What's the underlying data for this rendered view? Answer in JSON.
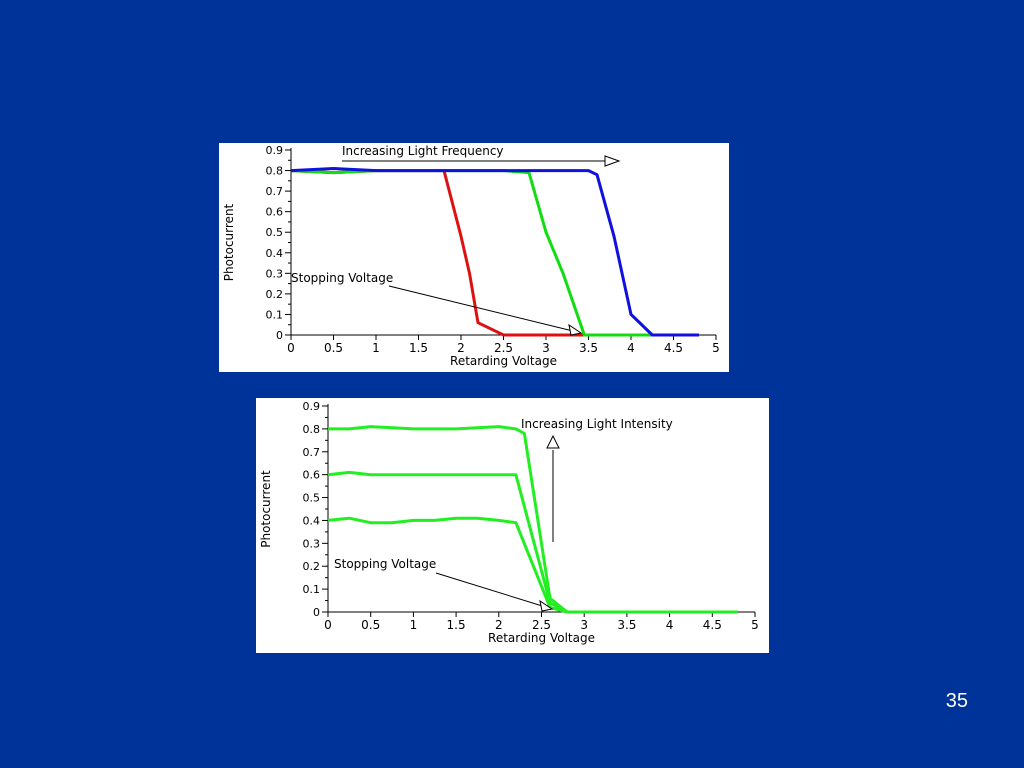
{
  "slide": {
    "page_number": "35",
    "background_color": "#003399"
  },
  "chart_data": [
    {
      "type": "line",
      "title": "",
      "xlabel": "Retarding Voltage",
      "ylabel": "Photocurrent",
      "xlim": [
        0,
        5
      ],
      "ylim": [
        0,
        0.9
      ],
      "xticks": [
        "0",
        "0.5",
        "1",
        "1.5",
        "2",
        "2.5",
        "3",
        "3.5",
        "4",
        "4.5",
        "5"
      ],
      "yticks": [
        "0",
        "0.1",
        "0.2",
        "0.3",
        "0.4",
        "0.5",
        "0.6",
        "0.7",
        "0.8",
        "0.9"
      ],
      "grid": false,
      "annotations": {
        "arrow_label": "Increasing Light Frequency",
        "stopping_label": "Stopping Voltage"
      },
      "series": [
        {
          "color": "#dd1111",
          "x": [
            0,
            0.5,
            1,
            1.5,
            1.8,
            2.0,
            2.1,
            2.2,
            2.5,
            3.0,
            3.5,
            4.0,
            4.5,
            4.8
          ],
          "y": [
            0.8,
            0.79,
            0.8,
            0.8,
            0.8,
            0.48,
            0.3,
            0.06,
            0.0,
            0.0,
            0.0,
            0.0,
            0.0,
            0.0
          ]
        },
        {
          "color": "#11dd11",
          "x": [
            0,
            0.5,
            1,
            1.5,
            2,
            2.5,
            2.8,
            3.0,
            3.2,
            3.45,
            3.5,
            4.0,
            4.5,
            4.8
          ],
          "y": [
            0.8,
            0.79,
            0.8,
            0.8,
            0.8,
            0.8,
            0.79,
            0.5,
            0.3,
            0.0,
            0.0,
            0.0,
            0.0,
            0.0
          ]
        },
        {
          "color": "#1111dd",
          "x": [
            0,
            0.5,
            1,
            1.5,
            2,
            2.5,
            3.0,
            3.5,
            3.6,
            3.8,
            4.0,
            4.25,
            4.5,
            4.8
          ],
          "y": [
            0.8,
            0.81,
            0.8,
            0.8,
            0.8,
            0.8,
            0.8,
            0.8,
            0.78,
            0.48,
            0.1,
            0.0,
            0.0,
            0.0
          ]
        }
      ]
    },
    {
      "type": "line",
      "title": "",
      "xlabel": "Retarding Voltage",
      "ylabel": "Photocurrent",
      "xlim": [
        0,
        5
      ],
      "ylim": [
        0,
        0.9
      ],
      "xticks": [
        "0",
        "0.5",
        "1",
        "1.5",
        "2",
        "2.5",
        "3",
        "3.5",
        "4",
        "4.5",
        "5"
      ],
      "yticks": [
        "0",
        "0.1",
        "0.2",
        "0.3",
        "0.4",
        "0.5",
        "0.6",
        "0.7",
        "0.8",
        "0.9"
      ],
      "grid": false,
      "annotations": {
        "arrow_label": "Increasing Light Intensity",
        "stopping_label": "Stopping Voltage"
      },
      "series": [
        {
          "color": "#22ee22",
          "x": [
            0,
            0.25,
            0.5,
            0.75,
            1.0,
            1.25,
            1.5,
            1.75,
            2.0,
            2.2,
            2.6,
            2.8,
            3.0,
            3.5,
            4.0,
            4.5,
            4.8
          ],
          "y": [
            0.4,
            0.41,
            0.39,
            0.39,
            0.4,
            0.4,
            0.41,
            0.41,
            0.4,
            0.39,
            0.02,
            0.0,
            0.0,
            0.0,
            0.0,
            0.0,
            0.0
          ]
        },
        {
          "color": "#22ee22",
          "x": [
            0,
            0.25,
            0.5,
            1.0,
            1.5,
            2.0,
            2.2,
            2.6,
            2.8,
            3.0,
            3.5,
            4.0,
            4.5,
            4.8
          ],
          "y": [
            0.6,
            0.61,
            0.6,
            0.6,
            0.6,
            0.6,
            0.6,
            0.04,
            0.0,
            0.0,
            0.0,
            0.0,
            0.0,
            0.0
          ]
        },
        {
          "color": "#22ee22",
          "x": [
            0,
            0.25,
            0.5,
            1.0,
            1.5,
            2.0,
            2.2,
            2.3,
            2.6,
            2.8,
            3.0,
            3.5,
            4.0,
            4.5,
            4.8
          ],
          "y": [
            0.8,
            0.8,
            0.81,
            0.8,
            0.8,
            0.81,
            0.8,
            0.78,
            0.06,
            0.0,
            0.0,
            0.0,
            0.0,
            0.0,
            0.0
          ]
        }
      ]
    }
  ]
}
